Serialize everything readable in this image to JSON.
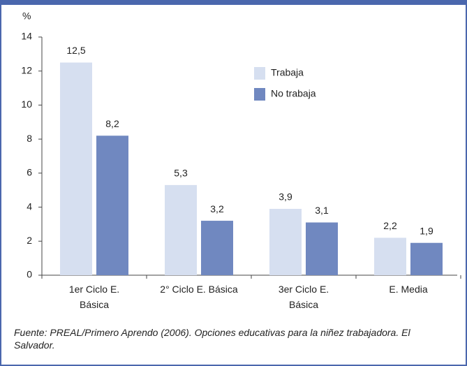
{
  "chart_data": {
    "type": "bar",
    "y_label": "%",
    "categories": [
      "1er Ciclo E.\nBásica",
      "2° Ciclo E. Básica",
      "3er Ciclo E.\nBásica",
      "E. Media"
    ],
    "series": [
      {
        "name": "Trabaja",
        "color": "#d6dff0",
        "values": [
          12.5,
          5.3,
          3.9,
          2.2
        ],
        "value_labels": [
          "12,5",
          "5,3",
          "3,9",
          "2,2"
        ]
      },
      {
        "name": "No trabaja",
        "color": "#7088c0",
        "values": [
          8.2,
          3.2,
          3.1,
          1.9
        ],
        "value_labels": [
          "8,2",
          "3,2",
          "3,1",
          "1,9"
        ]
      }
    ],
    "ylim": [
      0,
      14
    ],
    "yticks": [
      0,
      2,
      4,
      6,
      8,
      10,
      12,
      14
    ],
    "legend": "upper-center",
    "source": "Fuente: PREAL/Primero Aprendo (2006). Opciones educativas para la niñez trabajadora. El Salvador."
  }
}
